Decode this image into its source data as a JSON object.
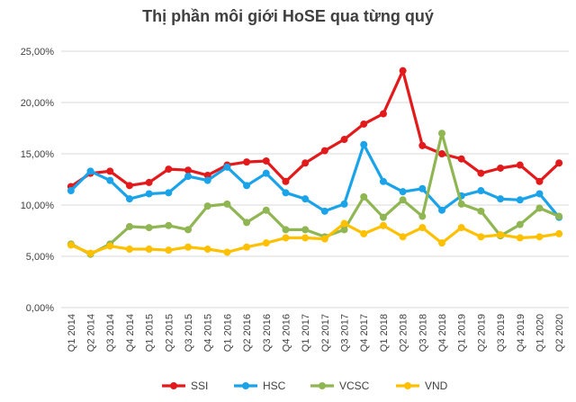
{
  "chart_data": {
    "type": "line",
    "title": "Thị phần môi giới HoSE qua từng quý",
    "xlabel": "",
    "ylabel": "",
    "ylim": [
      0,
      25
    ],
    "ytick_labels": [
      "0,00%",
      "5,00%",
      "10,00%",
      "15,00%",
      "20,00%",
      "25,00%"
    ],
    "grid": "horizontal",
    "legend_position": "bottom",
    "categories": [
      "Q1 2014",
      "Q2 2014",
      "Q3 2014",
      "Q4 2014",
      "Q1 2015",
      "Q2 2015",
      "Q3 2015",
      "Q4 2015",
      "Q1 2016",
      "Q2 2016",
      "Q3 2016",
      "Q4 2016",
      "Q1 2017",
      "Q2 2017",
      "Q3 2017",
      "Q4 2017",
      "Q1 2018",
      "Q2 2018",
      "Q3 2018",
      "Q4 2018",
      "Q1 2019",
      "Q2 2019",
      "Q3 2019",
      "Q4 2019",
      "Q1 2020",
      "Q2 2020"
    ],
    "series": [
      {
        "name": "SSI",
        "color": "#e31a1c",
        "values": [
          11.8,
          13.1,
          13.3,
          11.9,
          12.2,
          13.5,
          13.4,
          12.9,
          13.9,
          14.2,
          14.3,
          12.3,
          14.1,
          15.3,
          16.4,
          17.9,
          18.9,
          23.1,
          15.8,
          15.0,
          14.5,
          13.1,
          13.6,
          13.9,
          12.3,
          14.1
        ]
      },
      {
        "name": "HSC",
        "color": "#1aa3e8",
        "values": [
          11.4,
          13.3,
          12.4,
          10.6,
          11.1,
          11.2,
          12.8,
          12.4,
          13.7,
          11.9,
          13.1,
          11.2,
          10.6,
          9.4,
          10.1,
          15.9,
          12.3,
          11.3,
          11.6,
          9.5,
          10.9,
          11.4,
          10.6,
          10.5,
          11.1,
          8.8
        ]
      },
      {
        "name": "VCSC",
        "color": "#8fb652",
        "values": [
          6.2,
          5.2,
          6.2,
          7.9,
          7.8,
          8.0,
          7.6,
          9.9,
          10.1,
          8.3,
          9.5,
          7.6,
          7.6,
          6.9,
          7.6,
          10.8,
          8.8,
          10.5,
          8.9,
          17.0,
          10.1,
          9.4,
          7.0,
          8.1,
          9.7,
          8.9
        ]
      },
      {
        "name": "VND",
        "color": "#ffc000",
        "values": [
          6.1,
          5.3,
          6.0,
          5.7,
          5.7,
          5.6,
          5.9,
          5.7,
          5.4,
          5.9,
          6.3,
          6.8,
          6.8,
          6.7,
          8.2,
          7.2,
          8.0,
          6.9,
          7.8,
          6.3,
          7.8,
          6.9,
          7.1,
          6.8,
          6.9,
          7.2
        ]
      }
    ]
  }
}
